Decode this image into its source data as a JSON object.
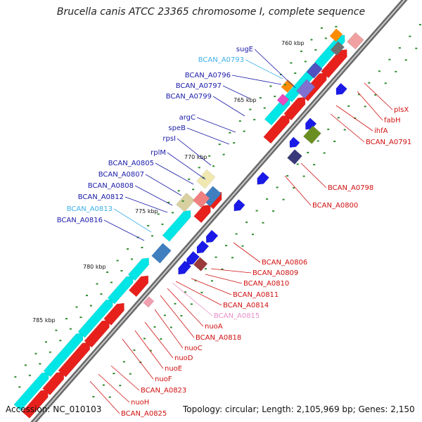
{
  "title": "Brucella canis ATCC 23365 chromosome I, complete sequence",
  "footer": {
    "accession": "Accession: NC_010103",
    "topology": "Topology: circular; Length: 2,105,969 bp; Genes: 2,150"
  },
  "kbp_marks": [
    "760 kbp",
    "765 kbp",
    "770 kbp",
    "775 kbp",
    "780 kbp",
    "785 kbp"
  ],
  "left_labels": [
    {
      "text": "sugE",
      "color": "#1a1aa8"
    },
    {
      "text": "BCAN_A0793",
      "color": "#3fb0e8"
    },
    {
      "text": "BCAN_A0796",
      "color": "#1a1aa8"
    },
    {
      "text": "BCAN_A0797",
      "color": "#1a1aa8"
    },
    {
      "text": "BCAN_A0799",
      "color": "#1a1aa8"
    },
    {
      "text": "argC",
      "color": "#1a1aa8"
    },
    {
      "text": "speB",
      "color": "#1a1aa8"
    },
    {
      "text": "rpsI",
      "color": "#1a1aa8"
    },
    {
      "text": "rplM",
      "color": "#1a1aa8"
    },
    {
      "text": "BCAN_A0805",
      "color": "#1a1aa8"
    },
    {
      "text": "BCAN_A0807",
      "color": "#1a1aa8"
    },
    {
      "text": "BCAN_A0808",
      "color": "#1a1aa8"
    },
    {
      "text": "BCAN_A0812",
      "color": "#1a1aa8"
    },
    {
      "text": "BCAN_A0813",
      "color": "#3fb0e8"
    },
    {
      "text": "BCAN_A0816",
      "color": "#1a1aa8"
    }
  ],
  "right_labels": [
    {
      "text": "plsX",
      "color": "#d01010"
    },
    {
      "text": "fabH",
      "color": "#d01010"
    },
    {
      "text": "ihfA",
      "color": "#d01010"
    },
    {
      "text": "BCAN_A0791",
      "color": "#d01010"
    },
    {
      "text": "BCAN_A0798",
      "color": "#d01010"
    },
    {
      "text": "BCAN_A0800",
      "color": "#d01010"
    },
    {
      "text": "BCAN_A0806",
      "color": "#d01010"
    },
    {
      "text": "BCAN_A0809",
      "color": "#d01010"
    },
    {
      "text": "BCAN_A0810",
      "color": "#d01010"
    },
    {
      "text": "BCAN_A0811",
      "color": "#d01010"
    },
    {
      "text": "BCAN_A0814",
      "color": "#d01010"
    },
    {
      "text": "BCAN_A0815",
      "color": "#e890c8"
    },
    {
      "text": "nuoA",
      "color": "#d01010"
    },
    {
      "text": "BCAN_A0818",
      "color": "#d01010"
    },
    {
      "text": "nuoC",
      "color": "#d01010"
    },
    {
      "text": "nuoD",
      "color": "#d01010"
    },
    {
      "text": "nuoE",
      "color": "#d01010"
    },
    {
      "text": "nuoF",
      "color": "#d01010"
    },
    {
      "text": "BCAN_A0823",
      "color": "#d01010"
    },
    {
      "text": "nuoH",
      "color": "#d01010"
    },
    {
      "text": "BCAN_A0825",
      "color": "#d01010"
    }
  ],
  "colors": {
    "forward_gene": "#e8201c",
    "reverse_gene": "#1a1ae8",
    "cds_track": "#00e5e5",
    "backbone": "#777777"
  }
}
